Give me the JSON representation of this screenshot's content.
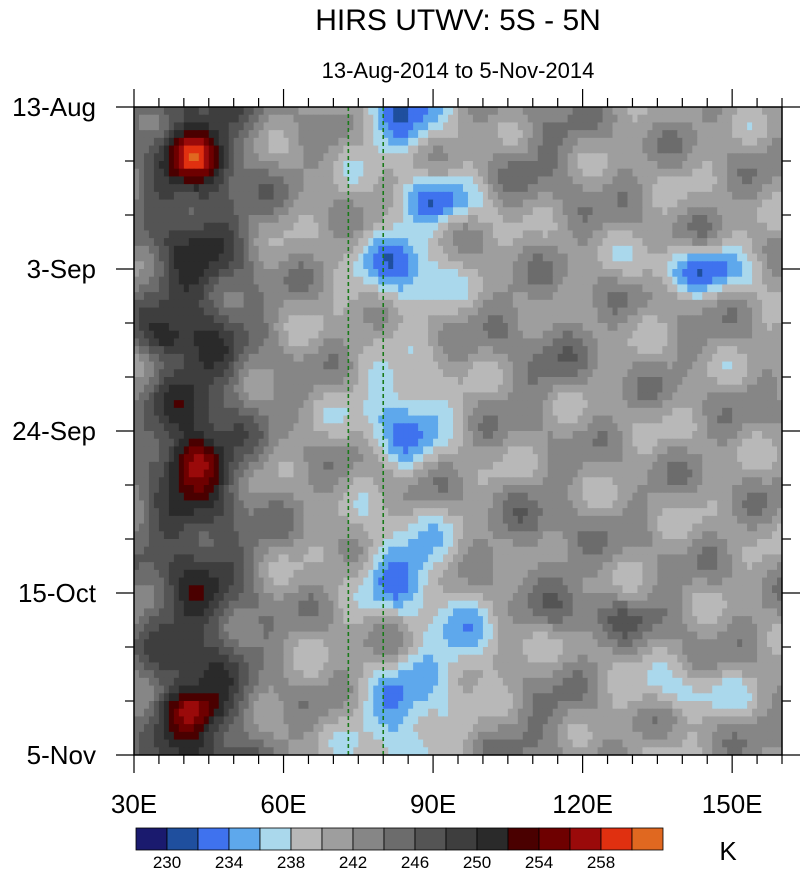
{
  "chart_data": {
    "type": "heatmap",
    "title": "HIRS UTWV: 5S - 5N",
    "subtitle": "13-Aug-2014 to 5-Nov-2014",
    "x_ticks": [
      "30E",
      "60E",
      "90E",
      "120E",
      "150E"
    ],
    "x_tick_values": [
      30,
      60,
      90,
      120,
      150
    ],
    "xlim": [
      30,
      160
    ],
    "y_ticks": [
      "13-Aug",
      "3-Sep",
      "24-Sep",
      "15-Oct",
      "5-Nov"
    ],
    "y_tick_values": [
      0,
      21,
      42,
      63,
      84
    ],
    "ylim": [
      0,
      84
    ],
    "reference_lines": [
      73,
      80
    ],
    "reference_line_color": "#1a7a1a",
    "colorbar": {
      "unit": "K",
      "tick_labels": [
        "230",
        "234",
        "238",
        "242",
        "246",
        "250",
        "254",
        "258"
      ],
      "levels": [
        228,
        230,
        232,
        234,
        236,
        238,
        240,
        242,
        244,
        246,
        248,
        250,
        252,
        254,
        256,
        258,
        260
      ],
      "colors": [
        "#1a1a6e",
        "#1f4f9e",
        "#3f72ee",
        "#5ea8ec",
        "#aad8ec",
        "#b8b8b8",
        "#9e9e9e",
        "#868686",
        "#6c6c6c",
        "#545454",
        "#3e3e3e",
        "#2a2a2a",
        "#4a0000",
        "#6e0000",
        "#9a0a0a",
        "#e03010",
        "#e06820"
      ]
    }
  }
}
